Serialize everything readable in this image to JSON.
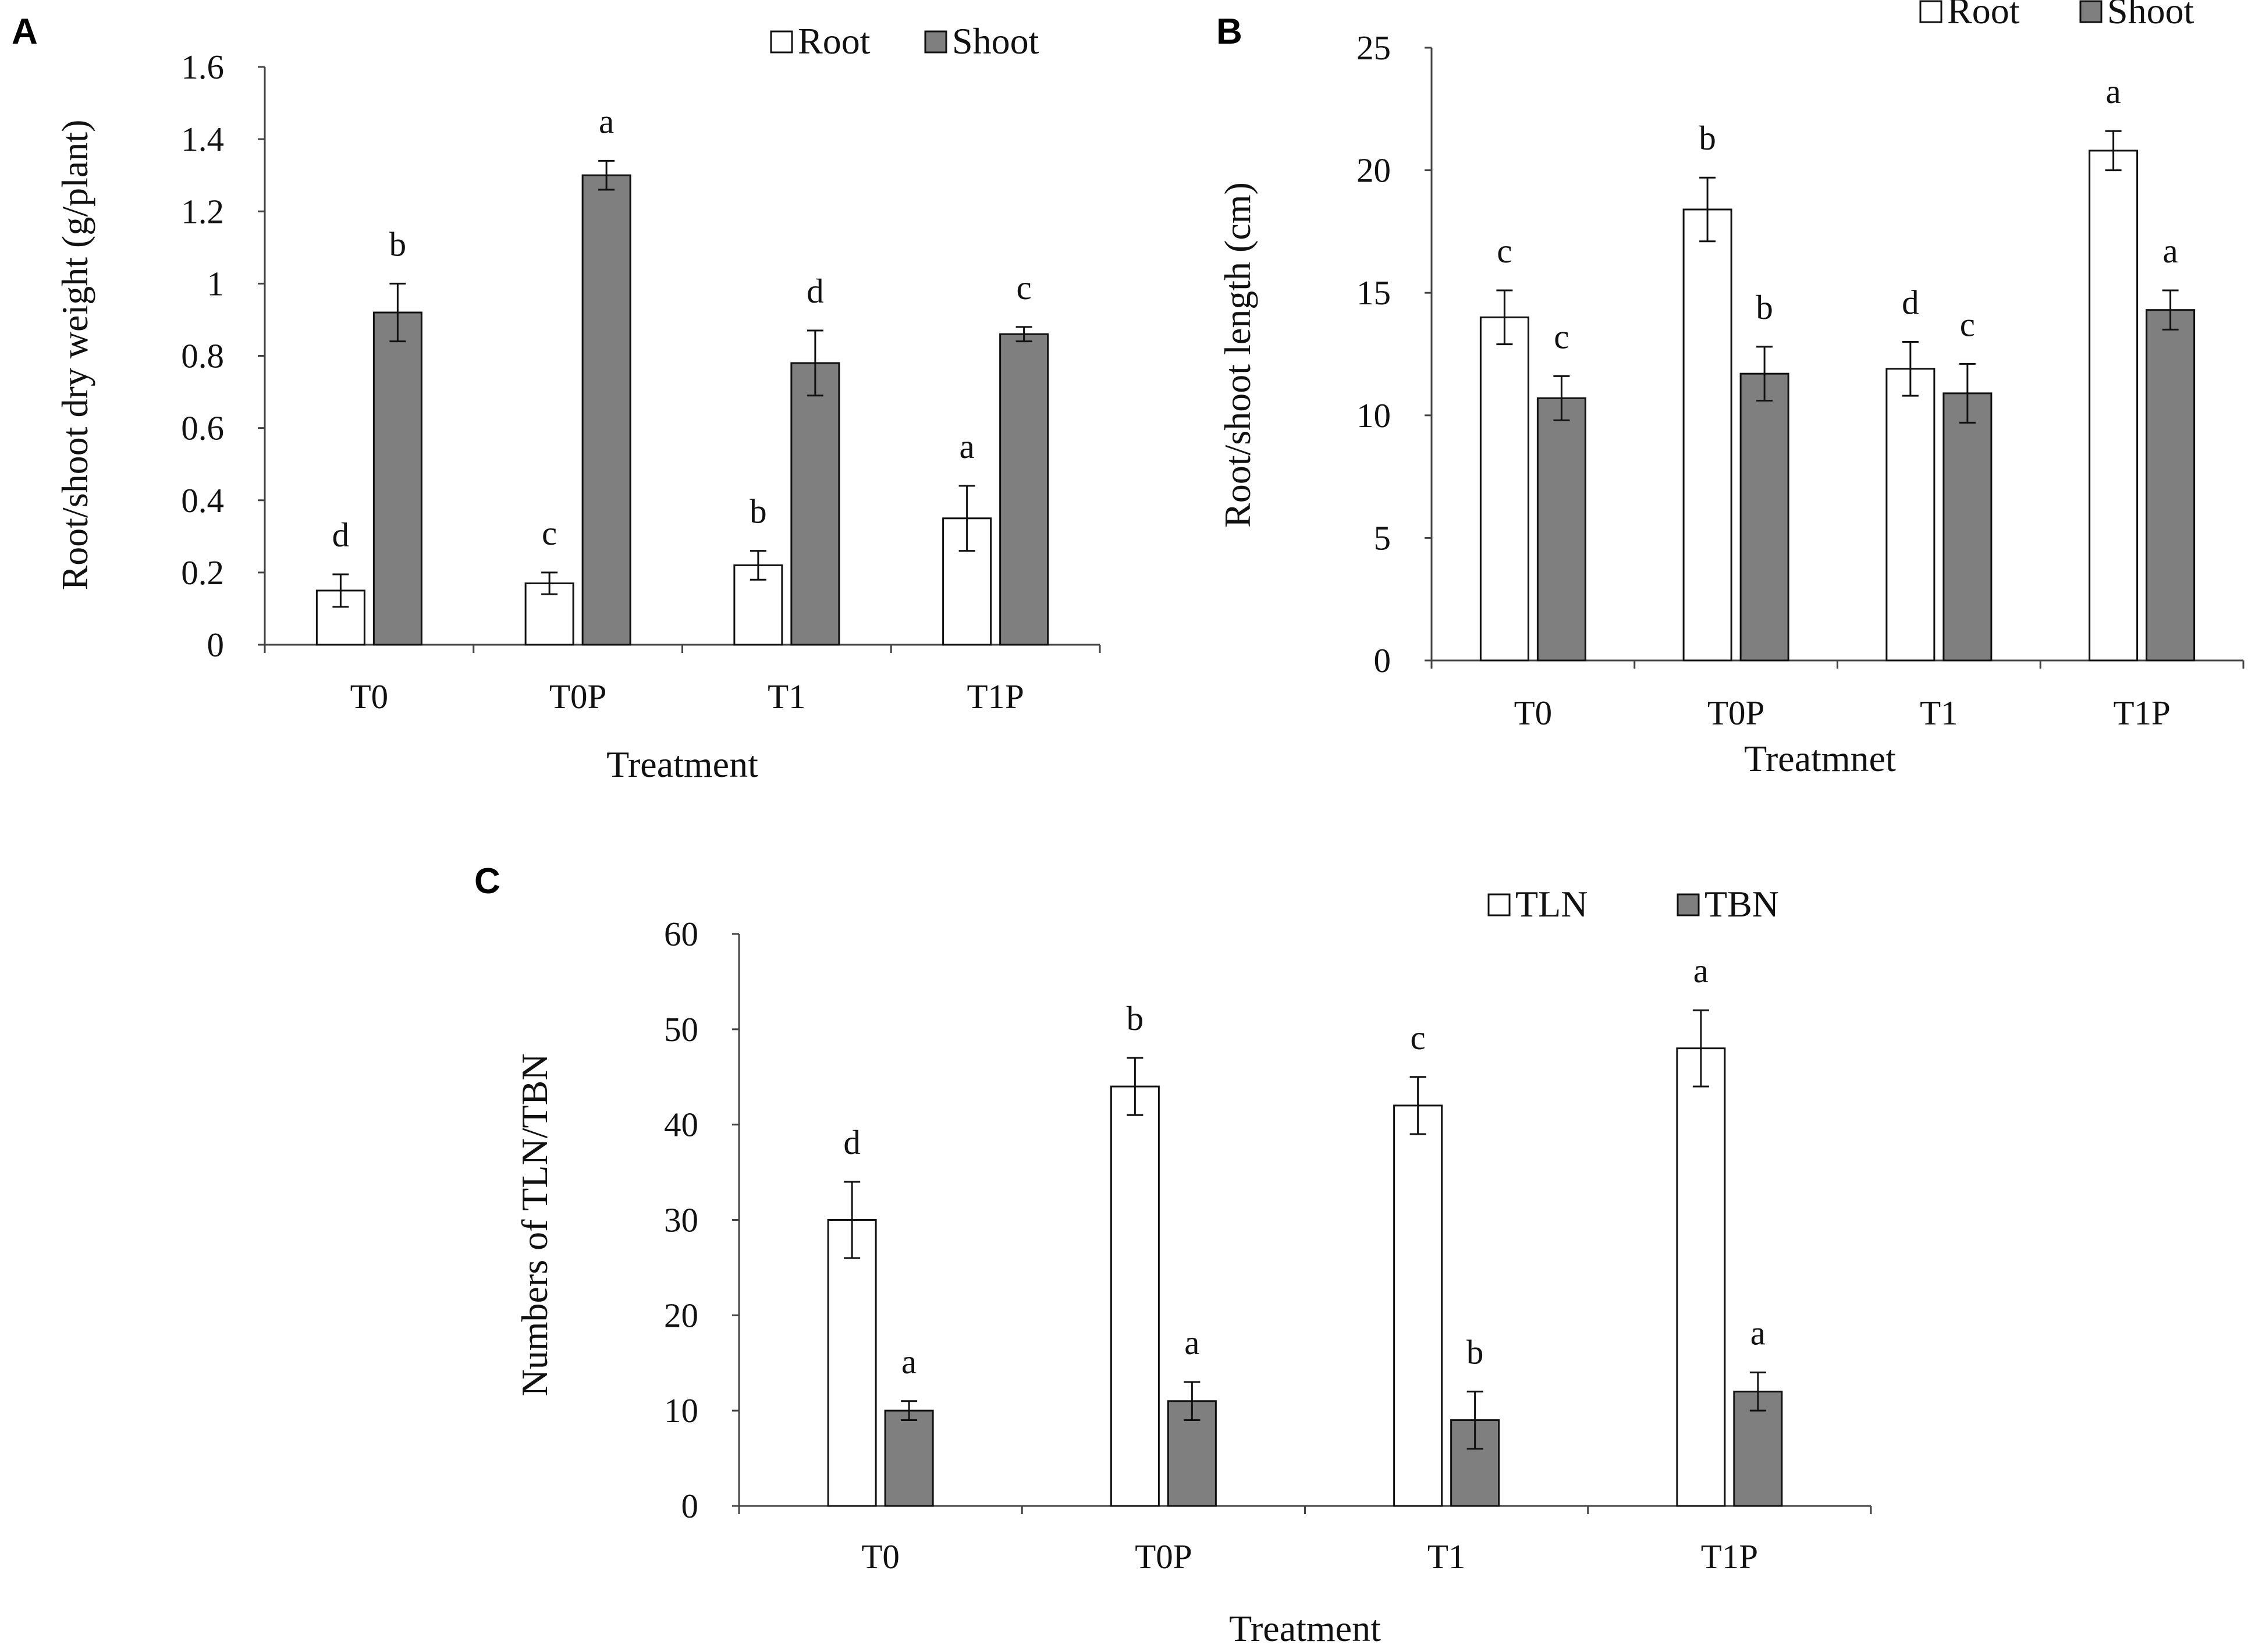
{
  "chart_data": [
    {
      "panel": "A",
      "type": "bar",
      "categories": [
        "T0",
        "T0P",
        "T1",
        "T1P"
      ],
      "xlabel": "Treatment",
      "ylabel": "Root/shoot dry weight  (g/plant)",
      "ylim": [
        0,
        1.6
      ],
      "yticks": [
        "0",
        "0.2",
        "0.4",
        "0.6",
        "0.8",
        "1",
        "1.2",
        "1.4",
        "1.6"
      ],
      "legend_position": "top-right",
      "series": [
        {
          "name": "Root",
          "color": "#ffffff",
          "values": [
            0.15,
            0.17,
            0.22,
            0.35
          ],
          "errors": [
            0.045,
            0.03,
            0.04,
            0.09
          ],
          "letters": [
            "d",
            "c",
            "b",
            "a"
          ]
        },
        {
          "name": "Shoot",
          "color": "#7f7f7f",
          "values": [
            0.92,
            1.3,
            0.78,
            0.86
          ],
          "errors": [
            0.08,
            0.04,
            0.09,
            0.02
          ],
          "letters": [
            "b",
            "a",
            "d",
            "c"
          ]
        }
      ]
    },
    {
      "panel": "B",
      "type": "bar",
      "categories": [
        "T0",
        "T0P",
        "T1",
        "T1P"
      ],
      "xlabel": "Treatmnet",
      "ylabel": "Root/shoot length (cm)",
      "ylim": [
        0,
        25
      ],
      "yticks": [
        "0",
        "5",
        "10",
        "15",
        "20",
        "25"
      ],
      "legend_position": "top-right",
      "series": [
        {
          "name": "Root",
          "color": "#ffffff",
          "values": [
            14,
            18.4,
            11.9,
            20.8
          ],
          "errors": [
            1.1,
            1.3,
            1.1,
            0.8
          ],
          "letters": [
            "c",
            "b",
            "d",
            "a"
          ]
        },
        {
          "name": "Shoot",
          "color": "#7f7f7f",
          "values": [
            10.7,
            11.7,
            10.9,
            14.3
          ],
          "errors": [
            0.9,
            1.1,
            1.2,
            0.8
          ],
          "letters": [
            "c",
            "b",
            "c",
            "a"
          ]
        }
      ]
    },
    {
      "panel": "C",
      "type": "bar",
      "categories": [
        "T0",
        "T0P",
        "T1",
        "T1P"
      ],
      "xlabel": "Treatment",
      "ylabel": "Numbers of TLN/TBN",
      "ylim": [
        0,
        60
      ],
      "yticks": [
        "0",
        "10",
        "20",
        "30",
        "40",
        "50",
        "60"
      ],
      "legend_position": "top-right",
      "series": [
        {
          "name": "TLN",
          "color": "#ffffff",
          "values": [
            30,
            44,
            42,
            48
          ],
          "errors": [
            4,
            3,
            3,
            4
          ],
          "letters": [
            "d",
            "b",
            "c",
            "a"
          ]
        },
        {
          "name": "TBN",
          "color": "#7f7f7f",
          "values": [
            10,
            11,
            9,
            12
          ],
          "errors": [
            1,
            2,
            3,
            2
          ],
          "letters": [
            "a",
            "a",
            "b",
            "a"
          ]
        }
      ]
    }
  ]
}
